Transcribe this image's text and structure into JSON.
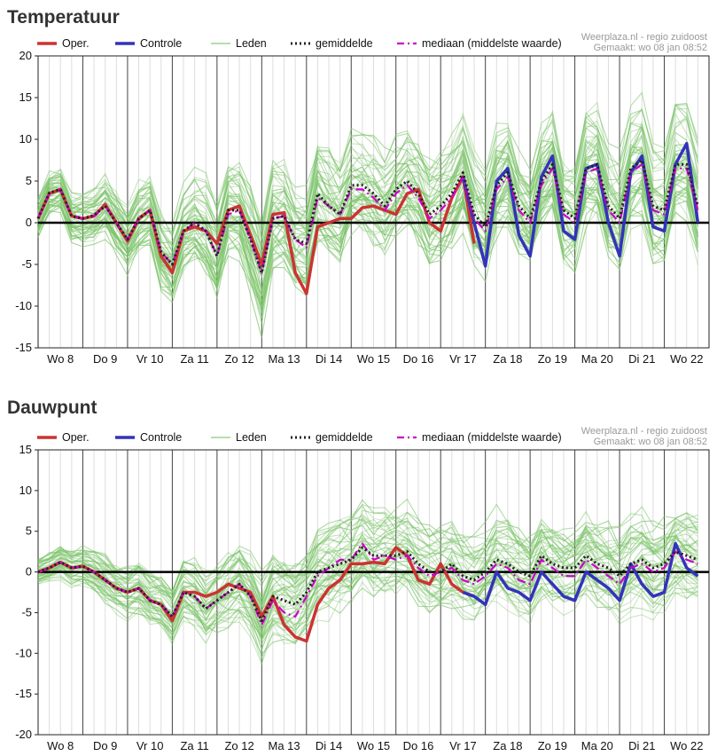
{
  "chart_data": [
    {
      "type": "line",
      "title": "Temperatuur",
      "credit_line1": "Weerplaza.nl - regio zuidoost",
      "credit_line2": "Gemaakt: wo 08 jan 08:52",
      "ylim": [
        -15,
        20
      ],
      "yticks": [
        20,
        15,
        10,
        5,
        0,
        -5,
        -10,
        -15
      ],
      "day_labels": [
        "Wo 8",
        "Do 9",
        "Vr 10",
        "Za 11",
        "Zo 12",
        "Ma 13",
        "Di 14",
        "Wo 15",
        "Do 16",
        "Vr 17",
        "Za 18",
        "Zo 19",
        "Ma 20",
        "Di 21",
        "Wo 22"
      ],
      "steps_per_day": 4,
      "legend": [
        {
          "label": "Oper.",
          "color": "#cc3333",
          "style": "solid"
        },
        {
          "label": "Controle",
          "color": "#3333bb",
          "style": "solid"
        },
        {
          "label": "Leden",
          "color": "#88cc77",
          "style": "thin"
        },
        {
          "label": "gemiddelde",
          "color": "#222222",
          "style": "dotted"
        },
        {
          "label": "mediaan (middelste waarde)",
          "color": "#cc00cc",
          "style": "dashdot"
        }
      ],
      "series": [
        {
          "name": "Oper.",
          "color": "#cc3333",
          "start": 0,
          "values": [
            0.5,
            3.5,
            4,
            0.8,
            0.5,
            0.8,
            2.2,
            0,
            -2.2,
            0.5,
            1.5,
            -4,
            -6,
            -1,
            -0.5,
            -1,
            -2.5,
            1.5,
            2,
            -1.5,
            -5,
            1,
            1.2,
            -6,
            -8.5,
            -0.5,
            0,
            0.5,
            0.5,
            1.8,
            2,
            1.5,
            1,
            3.5,
            4,
            0,
            -1,
            3,
            5.5,
            -2.5
          ]
        },
        {
          "name": "Controle",
          "color": "#3333bb",
          "start": 38,
          "values": [
            5.5,
            0,
            -5.2,
            5,
            6.5,
            -1.5,
            -4,
            5.5,
            8,
            -1,
            -2,
            6.5,
            7,
            0,
            -4,
            6,
            8,
            -0.5,
            -1,
            7,
            9.5,
            0
          ]
        },
        {
          "name": "gemiddelde",
          "color": "#222222",
          "start": 0,
          "values": [
            0.5,
            3.6,
            4,
            0.8,
            0.5,
            0.9,
            2,
            0,
            -2,
            0.5,
            1.5,
            -3.5,
            -5,
            -1,
            0,
            -1,
            -4,
            1.5,
            1.5,
            -2,
            -6,
            0.5,
            0.8,
            -2,
            -2.5,
            3.5,
            2,
            1,
            4.5,
            4.5,
            3.5,
            2,
            4,
            5,
            3.5,
            1,
            2,
            3.5,
            6,
            1,
            -0.5,
            4.5,
            6,
            2,
            0.5,
            5,
            7,
            1.5,
            0.5,
            6.5,
            7,
            2,
            0.5,
            6.5,
            7.5,
            2,
            1.5,
            7,
            7,
            2
          ]
        },
        {
          "name": "mediaan (middelste waarde)",
          "color": "#cc00cc",
          "start": 0,
          "values": [
            0.5,
            3.5,
            4,
            0.8,
            0.5,
            0.8,
            2,
            0,
            -2,
            0.5,
            1.5,
            -3.5,
            -5,
            -1,
            0,
            -1,
            -4,
            1,
            1.5,
            -2,
            -6,
            0.5,
            0.8,
            -2,
            -3,
            3,
            2,
            1,
            4,
            4,
            3,
            1.5,
            3.5,
            4.5,
            3,
            0.5,
            1.5,
            3,
            5.5,
            0.5,
            -1,
            4,
            5.5,
            1.5,
            0,
            4.5,
            6.5,
            1,
            0,
            6,
            6.5,
            1.5,
            0,
            6,
            7,
            1.5,
            1,
            6.5,
            6.5,
            1.5
          ]
        }
      ],
      "ensemble": {
        "center_series": "gemiddelde",
        "members": 50,
        "spread_start": 2.5,
        "spread_growth": 0.22,
        "spread_max": 7,
        "seed": 11
      }
    },
    {
      "type": "line",
      "title": "Dauwpunt",
      "credit_line1": "Weerplaza.nl - regio zuidoost",
      "credit_line2": "Gemaakt: wo 08 jan 08:52",
      "ylim": [
        -20,
        15
      ],
      "yticks": [
        15,
        10,
        5,
        0,
        -5,
        -10,
        -15,
        -20
      ],
      "day_labels": [
        "Wo 8",
        "Do 9",
        "Vr 10",
        "Za 11",
        "Zo 12",
        "Ma 13",
        "Di 14",
        "Wo 15",
        "Do 16",
        "Vr 17",
        "Za 18",
        "Zo 19",
        "Ma 20",
        "Di 21",
        "Wo 22"
      ],
      "steps_per_day": 4,
      "legend": [
        {
          "label": "Oper.",
          "color": "#cc3333",
          "style": "solid"
        },
        {
          "label": "Controle",
          "color": "#3333bb",
          "style": "solid"
        },
        {
          "label": "Leden",
          "color": "#88cc77",
          "style": "thin"
        },
        {
          "label": "gemiddelde",
          "color": "#222222",
          "style": "dotted"
        },
        {
          "label": "mediaan (middelste waarde)",
          "color": "#cc00cc",
          "style": "dashdot"
        }
      ],
      "series": [
        {
          "name": "Oper.",
          "color": "#cc3333",
          "start": 0,
          "values": [
            0,
            0.5,
            1.2,
            0.5,
            0.7,
            0,
            -1,
            -2,
            -2.5,
            -2,
            -3.5,
            -4,
            -6,
            -2.5,
            -2.5,
            -3,
            -2.5,
            -1.5,
            -2,
            -2.5,
            -5.5,
            -3,
            -6.5,
            -8,
            -8.5,
            -4,
            -2,
            -1,
            1,
            1,
            1.2,
            1,
            3,
            2,
            -1,
            -1.5,
            1,
            -1.5,
            -2.5,
            -3
          ]
        },
        {
          "name": "Controle",
          "color": "#3333bb",
          "start": 38,
          "values": [
            -2.5,
            -3,
            -4,
            0,
            -2,
            -2.5,
            -3.5,
            0,
            -1.5,
            -3,
            -3.5,
            0,
            -1,
            -2,
            -3.5,
            1,
            -1.5,
            -3,
            -2.5,
            3.5,
            0.5,
            -0.5
          ]
        },
        {
          "name": "gemiddelde",
          "color": "#222222",
          "start": 0,
          "values": [
            0,
            0.5,
            1.2,
            0.5,
            0.7,
            0,
            -1,
            -2,
            -2.5,
            -2,
            -3.5,
            -4,
            -5.5,
            -2.5,
            -3,
            -4.5,
            -3.5,
            -2.5,
            -1.5,
            -3,
            -6,
            -3,
            -3.5,
            -4,
            -2.5,
            0,
            0.5,
            1,
            1.5,
            3,
            2,
            2,
            2,
            2.5,
            1,
            0,
            0,
            1,
            -0.5,
            -1,
            0,
            1.5,
            1,
            0,
            -0.5,
            2,
            1,
            0.5,
            0.5,
            2,
            1,
            0.5,
            -0.5,
            1,
            1.5,
            0.5,
            1,
            2.5,
            2,
            1.5
          ]
        },
        {
          "name": "mediaan (middelste waarde)",
          "color": "#cc00cc",
          "start": 0,
          "values": [
            0,
            0.5,
            1.2,
            0.5,
            0.7,
            0,
            -1,
            -2,
            -2.5,
            -2,
            -3.5,
            -4,
            -5.5,
            -2.5,
            -3,
            -4.5,
            -3.5,
            -2.5,
            -1.5,
            -3,
            -6.5,
            -3.5,
            -5,
            -5.5,
            -3,
            -0.5,
            0.5,
            1.5,
            1.5,
            3.5,
            1.5,
            2,
            1.5,
            2,
            0.5,
            -0.5,
            0,
            0.5,
            -1,
            -1.5,
            -0.5,
            1,
            0.5,
            -1,
            -1.5,
            1.5,
            0.5,
            -0.5,
            -0.5,
            1.5,
            0.5,
            -0.5,
            -1.5,
            0.5,
            1,
            0,
            0.5,
            2.5,
            1.5,
            1
          ]
        }
      ],
      "ensemble": {
        "center_series": "gemiddelde",
        "members": 50,
        "spread_start": 2,
        "spread_growth": 0.18,
        "spread_max": 6,
        "seed": 29
      }
    }
  ]
}
